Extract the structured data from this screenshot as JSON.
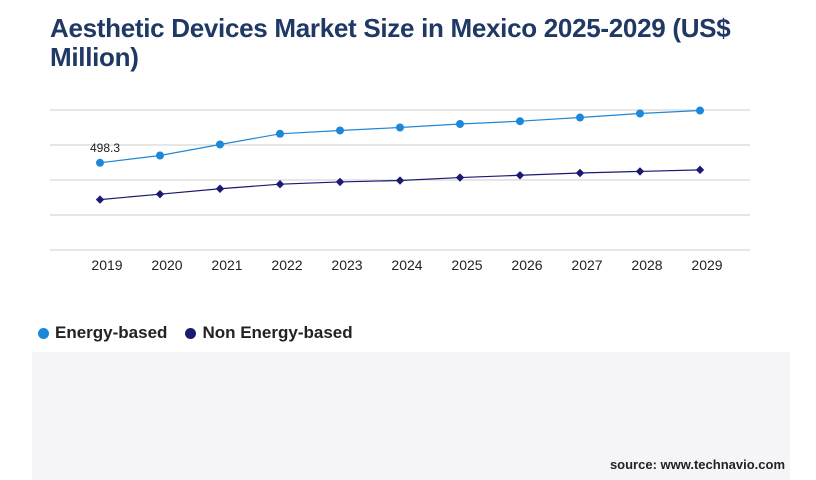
{
  "title": "Aesthetic Devices Market Size in Mexico 2025-2029 (US$ Million)",
  "source": "source: www.technavio.com",
  "colors": {
    "energy": "#1e88d8",
    "non_energy": "#1a1a72",
    "grid": "#cccccc",
    "title": "#1f3864"
  },
  "chart_data": {
    "type": "line",
    "categories": [
      "2019",
      "2020",
      "2021",
      "2022",
      "2023",
      "2024",
      "2025",
      "2026",
      "2027",
      "2028",
      "2029"
    ],
    "series": [
      {
        "name": "Energy-based",
        "values": [
          498.3,
          540,
          603,
          664,
          683,
          700,
          720,
          736,
          757,
          780,
          797
        ],
        "marker": "circle",
        "annotation": "498.3"
      },
      {
        "name": "Non Energy-based",
        "values": [
          288,
          319,
          350,
          376,
          389,
          397,
          414,
          427,
          440,
          449,
          458
        ],
        "marker": "diamond"
      }
    ],
    "ylim": [
      0,
      1000
    ],
    "grid": true,
    "legend": "bottom-left"
  }
}
